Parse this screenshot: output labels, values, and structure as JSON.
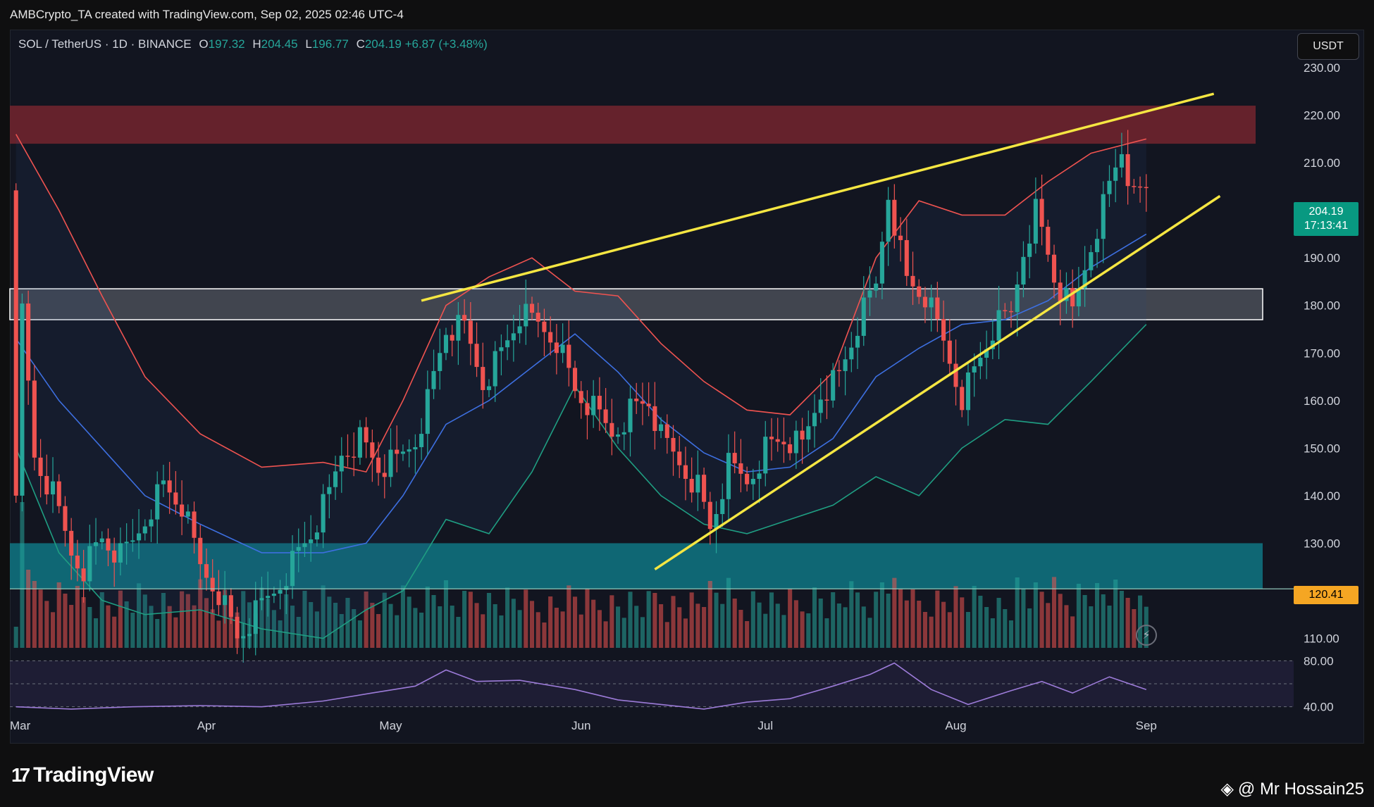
{
  "header": {
    "credit": "AMBCrypto_TA created with TradingView.com, Sep 02, 2025 02:46 UTC-4"
  },
  "legend": {
    "symbol": "SOL / TetherUS · 1D · BINANCE",
    "open_label": "O",
    "open": "197.32",
    "high_label": "H",
    "high": "204.45",
    "low_label": "L",
    "low": "196.77",
    "close_label": "C",
    "close": "204.19",
    "change": "+6.87 (+3.48%)"
  },
  "currency_button": "USDT",
  "last_price": {
    "price": "204.19",
    "countdown": "17:13:41"
  },
  "level_tag": "120.41",
  "footer": {
    "brand": "TradingView",
    "watermark": "@ Mr Hossain25"
  },
  "colors": {
    "up": "#26a69a",
    "down": "#ef5350",
    "resistance_zone": "#7a2530",
    "mid_zone": "#9aa0a8",
    "support_zone": "#0f7c8a",
    "trendline": "#f5e642",
    "bb_upper": "#ef5350",
    "bb_lower": "#1f9e82",
    "bb_basis": "#3d6fe0",
    "rsi": "#9c7bd8"
  },
  "chart_data": {
    "type": "candlestick",
    "price_axis_ticks": [
      "230.00",
      "220.00",
      "210.00",
      "200.00",
      "190.00",
      "180.00",
      "170.00",
      "160.00",
      "150.00",
      "140.00",
      "130.00",
      "120.00",
      "110.00"
    ],
    "rsi_axis_ticks": [
      "80.00",
      "40.00"
    ],
    "time_axis_ticks": [
      "Mar",
      "Apr",
      "May",
      "Jun",
      "Jul",
      "Aug",
      "Sep"
    ],
    "ylim": [
      108,
      238
    ],
    "zones": [
      {
        "name": "resistance",
        "low": 214,
        "high": 222
      },
      {
        "name": "mid",
        "low": 177,
        "high": 183.5
      },
      {
        "name": "support",
        "low": 120.4,
        "high": 130
      }
    ],
    "trendlines": [
      {
        "from": [
          "May 6",
          181
        ],
        "to": [
          "Sep 12",
          224.5
        ]
      },
      {
        "from": [
          "Jun 13",
          124.5
        ],
        "to": [
          "Sep 13",
          203
        ]
      }
    ],
    "horizontal_line": 120.41,
    "close_path": [
      [
        "Mar 1",
        143
      ],
      [
        "Mar 2",
        178
      ],
      [
        "Mar 4",
        148
      ],
      [
        "Mar 7",
        140
      ],
      [
        "Mar 10",
        128
      ],
      [
        "Mar 12",
        125
      ],
      [
        "Mar 15",
        131
      ],
      [
        "Mar 18",
        127
      ],
      [
        "Mar 20",
        130
      ],
      [
        "Mar 23",
        138
      ],
      [
        "Mar 25",
        142
      ],
      [
        "Mar 28",
        138
      ],
      [
        "Mar 31",
        125
      ],
      [
        "Apr 3",
        120
      ],
      [
        "Apr 6",
        110
      ],
      [
        "Apr 9",
        115
      ],
      [
        "Apr 12",
        120
      ],
      [
        "Apr 15",
        126
      ],
      [
        "Apr 18",
        132
      ],
      [
        "Apr 21",
        140
      ],
      [
        "Apr 23",
        149
      ],
      [
        "Apr 26",
        152
      ],
      [
        "Apr 29",
        146
      ],
      [
        "May 2",
        147
      ],
      [
        "May 5",
        152
      ],
      [
        "May 7",
        160
      ],
      [
        "May 10",
        175
      ],
      [
        "May 13",
        175
      ],
      [
        "May 16",
        164
      ],
      [
        "May 19",
        170
      ],
      [
        "May 22",
        178
      ],
      [
        "May 25",
        176
      ],
      [
        "May 28",
        173
      ],
      [
        "May 31",
        162
      ],
      [
        "Jun 3",
        158
      ],
      [
        "Jun 6",
        153
      ],
      [
        "Jun 9",
        158
      ],
      [
        "Jun 12",
        160
      ],
      [
        "Jun 14",
        152
      ],
      [
        "Jun 17",
        147
      ],
      [
        "Jun 20",
        142
      ],
      [
        "Jun 22",
        133
      ],
      [
        "Jun 25",
        146
      ],
      [
        "Jun 28",
        143
      ],
      [
        "Jul 1",
        150
      ],
      [
        "Jul 4",
        152
      ],
      [
        "Jul 7",
        150
      ],
      [
        "Jul 10",
        162
      ],
      [
        "Jul 13",
        165
      ],
      [
        "Jul 16",
        176
      ],
      [
        "Jul 19",
        184
      ],
      [
        "Jul 21",
        204
      ],
      [
        "Jul 24",
        185
      ],
      [
        "Jul 27",
        182
      ],
      [
        "Jul 30",
        172
      ],
      [
        "Aug 2",
        161
      ],
      [
        "Aug 4",
        166
      ],
      [
        "Aug 7",
        175
      ],
      [
        "Aug 10",
        178
      ],
      [
        "Aug 12",
        192
      ],
      [
        "Aug 14",
        200
      ],
      [
        "Aug 17",
        186
      ],
      [
        "Aug 20",
        178
      ],
      [
        "Aug 23",
        193
      ],
      [
        "Aug 26",
        205
      ],
      [
        "Aug 28",
        213
      ],
      [
        "Aug 30",
        202
      ],
      [
        "Sep 1",
        204.19
      ]
    ],
    "bb_upper": [
      [
        "Mar 1",
        216
      ],
      [
        "Mar 8",
        200
      ],
      [
        "Mar 15",
        182
      ],
      [
        "Mar 22",
        165
      ],
      [
        "Mar 31",
        153
      ],
      [
        "Apr 10",
        146
      ],
      [
        "Apr 20",
        147
      ],
      [
        "Apr 27",
        145
      ],
      [
        "May 3",
        160
      ],
      [
        "May 10",
        180
      ],
      [
        "May 17",
        186
      ],
      [
        "May 24",
        190
      ],
      [
        "May 31",
        183
      ],
      [
        "Jun 7",
        182
      ],
      [
        "Jun 14",
        172
      ],
      [
        "Jun 21",
        164
      ],
      [
        "Jun 28",
        158
      ],
      [
        "Jul 5",
        157
      ],
      [
        "Jul 12",
        166
      ],
      [
        "Jul 19",
        190
      ],
      [
        "Jul 26",
        202
      ],
      [
        "Aug 2",
        199
      ],
      [
        "Aug 9",
        199
      ],
      [
        "Aug 16",
        206
      ],
      [
        "Aug 23",
        212
      ],
      [
        "Sep 1",
        215
      ]
    ],
    "bb_lower": [
      [
        "Mar 1",
        150
      ],
      [
        "Mar 8",
        128
      ],
      [
        "Mar 15",
        118
      ],
      [
        "Mar 22",
        115
      ],
      [
        "Mar 31",
        116
      ],
      [
        "Apr 10",
        112
      ],
      [
        "Apr 20",
        110
      ],
      [
        "Apr 27",
        116
      ],
      [
        "May 3",
        120
      ],
      [
        "May 10",
        135
      ],
      [
        "May 17",
        132
      ],
      [
        "May 24",
        145
      ],
      [
        "May 31",
        163
      ],
      [
        "Jun 7",
        150
      ],
      [
        "Jun 14",
        140
      ],
      [
        "Jun 21",
        134
      ],
      [
        "Jun 28",
        132
      ],
      [
        "Jul 5",
        135
      ],
      [
        "Jul 12",
        138
      ],
      [
        "Jul 19",
        144
      ],
      [
        "Jul 26",
        140
      ],
      [
        "Aug 2",
        150
      ],
      [
        "Aug 9",
        156
      ],
      [
        "Aug 16",
        155
      ],
      [
        "Aug 23",
        164
      ],
      [
        "Sep 1",
        176
      ]
    ],
    "bb_basis": [
      [
        "Mar 1",
        173
      ],
      [
        "Mar 8",
        160
      ],
      [
        "Mar 15",
        150
      ],
      [
        "Mar 22",
        140
      ],
      [
        "Mar 31",
        134
      ],
      [
        "Apr 10",
        128
      ],
      [
        "Apr 20",
        128
      ],
      [
        "Apr 27",
        130
      ],
      [
        "May 3",
        140
      ],
      [
        "May 10",
        155
      ],
      [
        "May 17",
        160
      ],
      [
        "May 24",
        167
      ],
      [
        "May 31",
        174
      ],
      [
        "Jun 7",
        166
      ],
      [
        "Jun 14",
        156
      ],
      [
        "Jun 21",
        149
      ],
      [
        "Jun 28",
        145
      ],
      [
        "Jul 5",
        146
      ],
      [
        "Jul 12",
        152
      ],
      [
        "Jul 19",
        165
      ],
      [
        "Jul 26",
        171
      ],
      [
        "Aug 2",
        176
      ],
      [
        "Aug 9",
        177
      ],
      [
        "Aug 16",
        181
      ],
      [
        "Aug 23",
        188
      ],
      [
        "Sep 1",
        195
      ]
    ],
    "rsi": [
      [
        "Mar 1",
        40
      ],
      [
        "Mar 10",
        38
      ],
      [
        "Mar 20",
        40
      ],
      [
        "Mar 31",
        41
      ],
      [
        "Apr 10",
        40
      ],
      [
        "Apr 20",
        45
      ],
      [
        "Apr 28",
        52
      ],
      [
        "May 5",
        58
      ],
      [
        "May 10",
        72
      ],
      [
        "May 15",
        62
      ],
      [
        "May 22",
        63
      ],
      [
        "May 31",
        55
      ],
      [
        "Jun 7",
        46
      ],
      [
        "Jun 14",
        42
      ],
      [
        "Jun 21",
        38
      ],
      [
        "Jun 28",
        44
      ],
      [
        "Jul 5",
        47
      ],
      [
        "Jul 12",
        58
      ],
      [
        "Jul 18",
        68
      ],
      [
        "Jul 22",
        78
      ],
      [
        "Jul 28",
        55
      ],
      [
        "Aug 3",
        42
      ],
      [
        "Aug 10",
        54
      ],
      [
        "Aug 15",
        62
      ],
      [
        "Aug 20",
        52
      ],
      [
        "Aug 26",
        66
      ],
      [
        "Sep 1",
        55
      ]
    ]
  }
}
